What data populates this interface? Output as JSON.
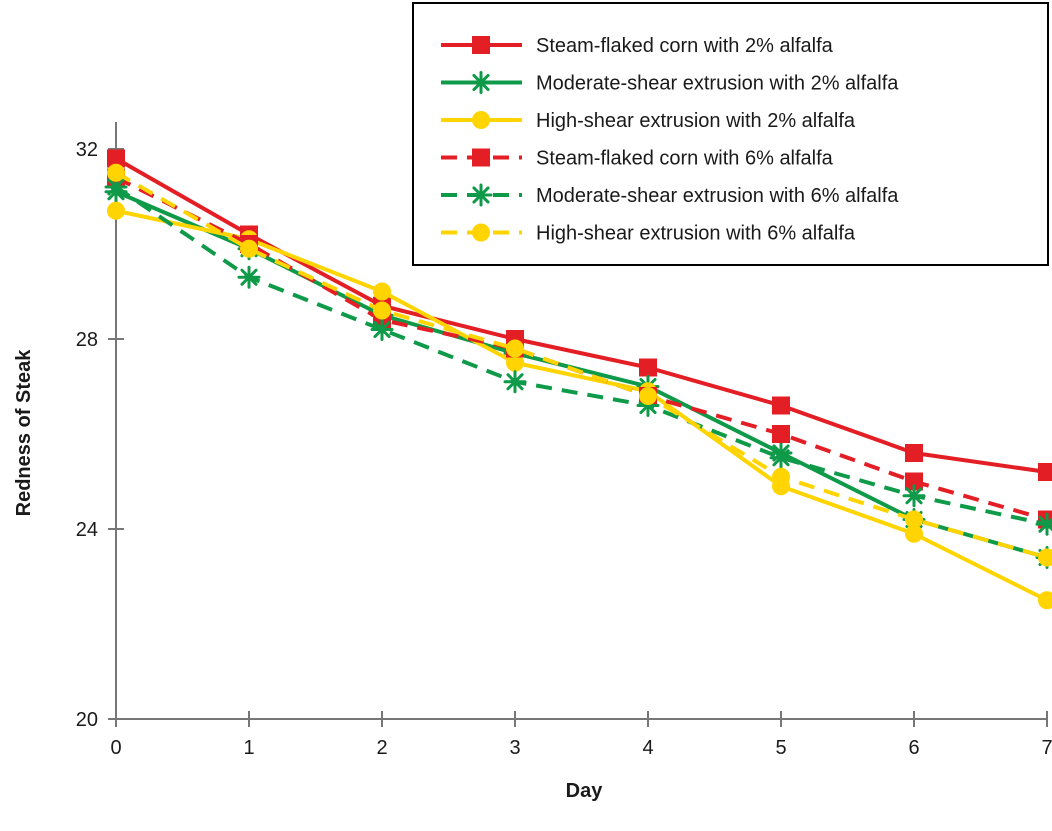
{
  "chart_data": {
    "type": "line",
    "title": "",
    "xlabel": "Day",
    "ylabel": "Redness of Steak",
    "x": [
      0,
      1,
      2,
      3,
      4,
      5,
      6,
      7
    ],
    "x_ticks": [
      "0",
      "1",
      "2",
      "3",
      "4",
      "5",
      "6",
      "7"
    ],
    "y_ticks": [
      "20",
      "24",
      "28",
      "32"
    ],
    "xlim": [
      0,
      7
    ],
    "ylim": [
      20,
      33.2
    ],
    "grid": false,
    "legend_position": "top-right",
    "series": [
      {
        "name": "Steam-flaked corn with 2% alfalfa",
        "color": "#e31e24",
        "dash": "solid",
        "marker": "square",
        "values": [
          31.8,
          30.2,
          28.7,
          28.0,
          27.4,
          26.6,
          25.6,
          25.2
        ]
      },
      {
        "name": "Moderate-shear extrusion with 2% alfalfa",
        "color": "#0e9a48",
        "dash": "solid",
        "marker": "asterisk",
        "values": [
          31.1,
          29.9,
          28.5,
          27.7,
          27.0,
          25.6,
          24.2,
          23.4
        ]
      },
      {
        "name": "High-shear extrusion with 2% alfalfa",
        "color": "#ffd400",
        "dash": "solid",
        "marker": "circle",
        "values": [
          30.7,
          30.1,
          29.0,
          27.5,
          26.9,
          24.9,
          23.9,
          22.5
        ]
      },
      {
        "name": "Steam-flaked corn with 6% alfalfa",
        "color": "#e31e24",
        "dash": "dashed",
        "marker": "square",
        "values": [
          31.4,
          30.0,
          28.4,
          27.8,
          26.8,
          26.0,
          25.0,
          24.2
        ]
      },
      {
        "name": "Moderate-shear extrusion with 6% alfalfa",
        "color": "#0e9a48",
        "dash": "dashed",
        "marker": "asterisk",
        "values": [
          31.2,
          29.3,
          28.2,
          27.1,
          26.6,
          25.5,
          24.7,
          24.1
        ]
      },
      {
        "name": "High-shear extrusion with 6% alfalfa",
        "color": "#ffd400",
        "dash": "dashed",
        "marker": "circle",
        "values": [
          31.5,
          29.9,
          28.6,
          27.8,
          26.8,
          25.1,
          24.2,
          23.4
        ]
      }
    ]
  }
}
